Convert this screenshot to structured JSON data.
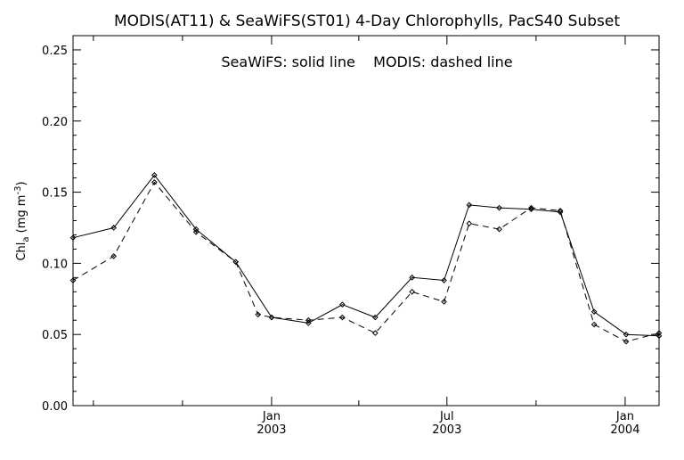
{
  "chart_data": {
    "type": "line",
    "title": "MODIS(AT11) & SeaWiFS(ST01) 4-Day Chlorophylls, PacS40 Subset",
    "annotation": "SeaWiFS: solid line    MODIS: dashed line",
    "ylabel": {
      "main": "Chl",
      "sub": "a",
      "unit": "(mg m",
      "exp": "-3",
      "close": ")"
    },
    "xlabel": "",
    "ylim": [
      0,
      0.26
    ],
    "yticks": [
      0.0,
      0.05,
      0.1,
      0.15,
      0.2,
      0.25
    ],
    "ytick_labels": [
      "0.00",
      "0.05",
      "0.10",
      "0.15",
      "0.20",
      "0.25"
    ],
    "xlim": [
      "2002-06-10",
      "2004-02-05"
    ],
    "xticks_major": [
      {
        "date": "2003-01-01",
        "line1": "Jan",
        "line2": "2003"
      },
      {
        "date": "2003-07-01",
        "line1": "Jul",
        "line2": "2003"
      },
      {
        "date": "2004-01-01",
        "line1": "Jan",
        "line2": "2004"
      }
    ],
    "xticks_minor": [
      "2002-07-01",
      "2002-10-01",
      "2003-04-01",
      "2003-10-01"
    ],
    "grid": false,
    "series": [
      {
        "name": "SeaWiFS",
        "style": "solid",
        "color": "#000000",
        "x": [
          "2002-06-10",
          "2002-07-22",
          "2002-09-02",
          "2002-10-15",
          "2002-11-25",
          "2003-01-01",
          "2003-02-08",
          "2003-03-15",
          "2003-04-18",
          "2003-05-26",
          "2003-06-28",
          "2003-07-24",
          "2003-08-24",
          "2003-09-26",
          "2003-10-26",
          "2003-11-30",
          "2004-01-02",
          "2004-02-05"
        ],
        "values": [
          0.118,
          0.125,
          0.162,
          0.124,
          0.101,
          0.062,
          0.058,
          0.071,
          0.062,
          0.09,
          0.088,
          0.141,
          0.139,
          0.138,
          0.136,
          0.066,
          0.05,
          0.049
        ]
      },
      {
        "name": "MODIS",
        "style": "dashed",
        "color": "#000000",
        "x": [
          "2002-06-10",
          "2002-07-22",
          "2002-09-02",
          "2002-10-15",
          "2002-11-25",
          "2002-12-18",
          "2003-01-01",
          "2003-02-08",
          "2003-03-15",
          "2003-04-18",
          "2003-05-26",
          "2003-06-28",
          "2003-07-24",
          "2003-08-24",
          "2003-09-26",
          "2003-10-26",
          "2003-11-30",
          "2004-01-02",
          "2004-02-05"
        ],
        "values": [
          0.088,
          0.105,
          0.157,
          0.122,
          0.101,
          0.064,
          0.062,
          0.06,
          0.062,
          0.051,
          0.08,
          0.073,
          0.128,
          0.124,
          0.139,
          0.137,
          0.057,
          0.045,
          0.051
        ]
      }
    ]
  }
}
